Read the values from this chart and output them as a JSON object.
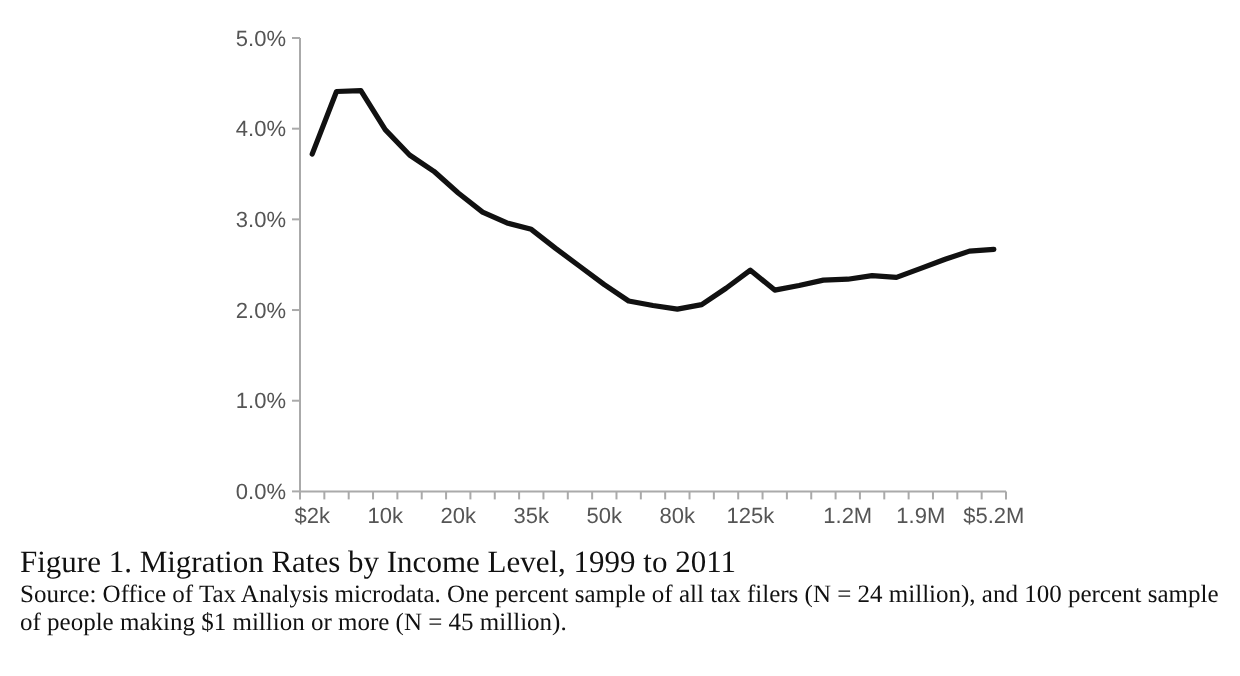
{
  "chart_data": {
    "type": "line",
    "title": "Figure 1. Migration Rates by Income Level, 1999 to 2011",
    "annotations": [
      "Source: Office of Tax Analysis microdata. One percent sample of all tax filers (N = 24 million), and 100 percent sample of people making $1 million or more (N = 45 million)."
    ],
    "categories": [
      "$2k",
      null,
      null,
      "10k",
      null,
      null,
      "20k",
      null,
      null,
      "35k",
      null,
      null,
      "50k",
      null,
      null,
      "80k",
      null,
      null,
      "125k",
      null,
      null,
      null,
      "1.2M",
      null,
      null,
      "1.9M",
      null,
      null,
      "$5.2M"
    ],
    "series": [
      {
        "color": "#111111",
        "values": [
          3.72,
          4.41,
          4.42,
          3.99,
          3.71,
          3.53,
          3.29,
          3.08,
          2.96,
          2.89,
          2.68,
          2.48,
          2.28,
          2.1,
          2.05,
          2.01,
          2.06,
          2.24,
          2.44,
          2.22,
          2.27,
          2.33,
          2.34,
          2.38,
          2.36,
          2.46,
          2.56,
          2.65,
          2.67
        ]
      }
    ],
    "ylim": [
      0,
      5
    ],
    "yticks": [
      {
        "value": 0,
        "label": "0.0%"
      },
      {
        "value": 1,
        "label": "1.0%"
      },
      {
        "value": 2,
        "label": "2.0%"
      },
      {
        "value": 3,
        "label": "3.0%"
      },
      {
        "value": 4,
        "label": "4.0%"
      },
      {
        "value": 5,
        "label": "5.0%"
      }
    ],
    "grid": false,
    "marker": "none",
    "line_style": "solid"
  }
}
